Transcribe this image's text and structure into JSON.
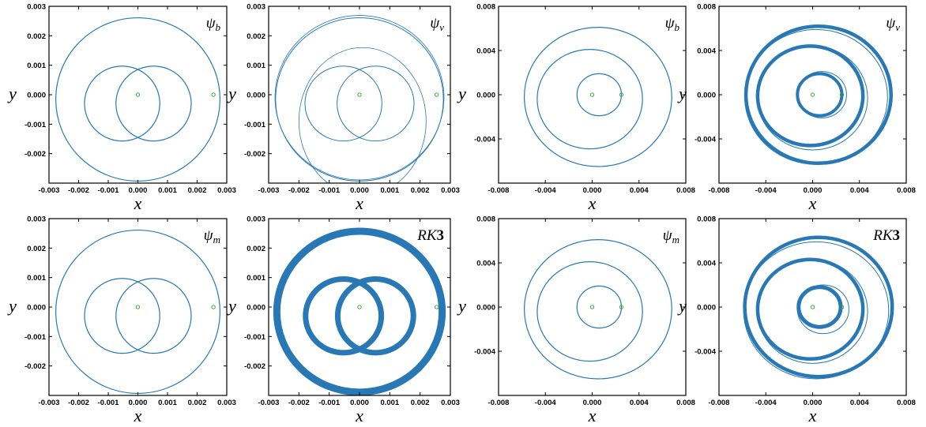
{
  "colors": {
    "trajectory": "#2878b5",
    "marker": "#2ca02c",
    "axes": "#000000"
  },
  "axis_labels": {
    "x": "x",
    "y": "y"
  },
  "chart_data": [
    {
      "type": "line",
      "panel_label": {
        "main": "ψ",
        "sub": "b"
      },
      "xlim": [
        -0.003,
        0.003
      ],
      "ylim": [
        -0.003,
        0.003
      ],
      "xticks": [
        "-0.003",
        "-0.002",
        "-0.001",
        "0.000",
        "0.001",
        "0.002",
        "0.003"
      ],
      "yticks": [
        "0.003",
        "0.002",
        "0.001",
        "0.000",
        "-0.001",
        "-0.002"
      ],
      "curves": [
        {
          "shape": "circle",
          "center": [
            0.0,
            -0.00016
          ],
          "radius": 0.00277,
          "width": 1.2
        },
        {
          "shape": "circle",
          "center": [
            -0.00053,
            -0.0003
          ],
          "radius": 0.00127,
          "width": 1.2
        },
        {
          "shape": "circle",
          "center": [
            0.00053,
            -0.0003
          ],
          "radius": 0.00127,
          "width": 1.2
        }
      ],
      "markers": [
        [
          0.0,
          0.0
        ],
        [
          0.00255,
          0.0
        ]
      ]
    },
    {
      "type": "line",
      "panel_label": {
        "main": "ψ",
        "sub": "v"
      },
      "xlim": [
        -0.003,
        0.003
      ],
      "ylim": [
        -0.003,
        0.003
      ],
      "xticks": [
        "-0.003",
        "-0.002",
        "-0.001",
        "0.000",
        "0.001",
        "0.002",
        "0.003"
      ],
      "yticks": [
        "0.003",
        "0.002",
        "0.001",
        "0.000",
        "-0.001",
        "-0.002"
      ],
      "curves": [
        {
          "shape": "circle",
          "center": [
            0.0,
            -0.00016
          ],
          "radius": 0.00277,
          "width": 1.0
        },
        {
          "shape": "circle",
          "center": [
            0.0,
            -0.0001
          ],
          "radius": 0.00279,
          "width": 0.8
        },
        {
          "shape": "circle",
          "center": [
            -0.00053,
            -0.0003
          ],
          "radius": 0.00127,
          "width": 1.0
        },
        {
          "shape": "circle",
          "center": [
            0.00053,
            -0.0003
          ],
          "radius": 0.00127,
          "width": 1.0
        },
        {
          "shape": "ellipse",
          "center": [
            0.0001,
            -0.0009
          ],
          "radius": [
            0.0021,
            0.0025
          ],
          "width": 0.8
        }
      ],
      "markers": [
        [
          0.0,
          0.0
        ],
        [
          0.00255,
          0.0
        ]
      ]
    },
    {
      "type": "line",
      "panel_label": {
        "main": "ψ",
        "sub": "b"
      },
      "xlim": [
        -0.008,
        0.008
      ],
      "ylim": [
        -0.008,
        0.008
      ],
      "xticks": [
        "-0.008",
        "-0.004",
        "0.000",
        "0.004",
        "0.008"
      ],
      "yticks": [
        "0.008",
        "0.004",
        "0.000",
        "-0.004"
      ],
      "curves": [
        {
          "shape": "circle",
          "center": [
            0.0005,
            -0.0002
          ],
          "radius": 0.0063,
          "width": 1.2
        },
        {
          "shape": "circle",
          "center": [
            -0.0002,
            -0.0004
          ],
          "radius": 0.0045,
          "width": 1.2
        },
        {
          "shape": "circle",
          "center": [
            0.0006,
            0.0
          ],
          "radius": 0.0019,
          "width": 1.2
        }
      ],
      "markers": [
        [
          0.0,
          0.0
        ],
        [
          0.0025,
          0.0
        ]
      ]
    },
    {
      "type": "line",
      "panel_label": {
        "main": "ψ",
        "sub": "v"
      },
      "xlim": [
        -0.008,
        0.008
      ],
      "ylim": [
        -0.008,
        0.008
      ],
      "xticks": [
        "-0.008",
        "-0.004",
        "0.000",
        "0.004",
        "0.008"
      ],
      "yticks": [
        "0.008",
        "0.004",
        "0.000",
        "-0.004"
      ],
      "curves": [
        {
          "shape": "circle",
          "center": [
            0.0005,
            0.0
          ],
          "radius": 0.0062,
          "width": 4.5
        },
        {
          "shape": "circle",
          "center": [
            0.0003,
            -0.0002
          ],
          "radius": 0.0061,
          "width": 1.0
        },
        {
          "shape": "circle",
          "center": [
            -0.0002,
            -0.0001
          ],
          "radius": 0.0045,
          "width": 4.5
        },
        {
          "shape": "circle",
          "center": [
            0.0,
            -0.0003
          ],
          "radius": 0.0047,
          "width": 1.0
        },
        {
          "shape": "circle",
          "center": [
            0.0006,
            0.0
          ],
          "radius": 0.0019,
          "width": 4.0
        },
        {
          "shape": "circle",
          "center": [
            0.0008,
            0.0
          ],
          "radius": 0.0021,
          "width": 1.0
        }
      ],
      "markers": [
        [
          0.0,
          0.0
        ],
        [
          0.0025,
          0.0
        ]
      ]
    },
    {
      "type": "line",
      "panel_label": {
        "main": "ψ",
        "sub": "m"
      },
      "xlim": [
        -0.003,
        0.003
      ],
      "ylim": [
        -0.003,
        0.003
      ],
      "xticks": [
        "-0.003",
        "-0.002",
        "-0.001",
        "0.000",
        "0.001",
        "0.002",
        "0.003"
      ],
      "yticks": [
        "0.003",
        "0.002",
        "0.001",
        "0.000",
        "-0.001",
        "-0.002"
      ],
      "curves": [
        {
          "shape": "circle",
          "center": [
            0.0,
            -0.00016
          ],
          "radius": 0.00277,
          "width": 1.2
        },
        {
          "shape": "circle",
          "center": [
            -0.00053,
            -0.0003
          ],
          "radius": 0.00127,
          "width": 1.2
        },
        {
          "shape": "circle",
          "center": [
            0.00053,
            -0.0003
          ],
          "radius": 0.00127,
          "width": 1.2
        }
      ],
      "markers": [
        [
          0.0,
          0.0
        ],
        [
          0.00255,
          0.0
        ]
      ]
    },
    {
      "type": "line",
      "panel_label": {
        "main": "RK",
        "bold": "3"
      },
      "xlim": [
        -0.003,
        0.003
      ],
      "ylim": [
        -0.003,
        0.003
      ],
      "xticks": [
        "-0.003",
        "-0.002",
        "-0.001",
        "0.000",
        "0.001",
        "0.002",
        "0.003"
      ],
      "yticks": [
        "0.003",
        "0.002",
        "0.001",
        "0.000",
        "-0.001",
        "-0.002"
      ],
      "curves": [
        {
          "shape": "circle",
          "center": [
            0.0,
            -0.00016
          ],
          "radius": 0.00273,
          "width": 9
        },
        {
          "shape": "circle",
          "center": [
            -0.00053,
            -0.0003
          ],
          "radius": 0.00125,
          "width": 7
        },
        {
          "shape": "circle",
          "center": [
            0.00053,
            -0.0003
          ],
          "radius": 0.00125,
          "width": 7
        }
      ],
      "markers": [
        [
          0.0,
          0.0
        ],
        [
          0.00255,
          0.0
        ]
      ]
    },
    {
      "type": "line",
      "panel_label": {
        "main": "ψ",
        "sub": "m"
      },
      "xlim": [
        -0.008,
        0.008
      ],
      "ylim": [
        -0.008,
        0.008
      ],
      "xticks": [
        "-0.008",
        "-0.004",
        "0.000",
        "0.004",
        "0.008"
      ],
      "yticks": [
        "0.008",
        "0.004",
        "0.000",
        "-0.004"
      ],
      "curves": [
        {
          "shape": "circle",
          "center": [
            0.0005,
            -0.0002
          ],
          "radius": 0.0063,
          "width": 1.2
        },
        {
          "shape": "circle",
          "center": [
            -0.0002,
            -0.0004
          ],
          "radius": 0.0045,
          "width": 1.2
        },
        {
          "shape": "circle",
          "center": [
            0.0006,
            0.0
          ],
          "radius": 0.0019,
          "width": 1.2
        }
      ],
      "markers": [
        [
          0.0,
          0.0
        ],
        [
          0.0025,
          0.0
        ]
      ]
    },
    {
      "type": "line",
      "panel_label": {
        "main": "RK",
        "bold": "3"
      },
      "xlim": [
        -0.008,
        0.008
      ],
      "ylim": [
        -0.008,
        0.008
      ],
      "xticks": [
        "-0.008",
        "-0.004",
        "0.000",
        "0.004",
        "0.008"
      ],
      "yticks": [
        "0.008",
        "0.004",
        "0.000",
        "-0.004"
      ],
      "curves": [
        {
          "shape": "circle",
          "center": [
            0.0005,
            0.0
          ],
          "radius": 0.0063,
          "width": 4.5
        },
        {
          "shape": "circle",
          "center": [
            0.0003,
            -0.0003
          ],
          "radius": 0.0062,
          "width": 1.0
        },
        {
          "shape": "circle",
          "center": [
            -0.0002,
            -0.0002
          ],
          "radius": 0.0045,
          "width": 4.5
        },
        {
          "shape": "circle",
          "center": [
            0.0,
            -0.0004
          ],
          "radius": 0.0047,
          "width": 1.0
        },
        {
          "shape": "circle",
          "center": [
            0.0006,
            0.0
          ],
          "radius": 0.0018,
          "width": 5.0
        },
        {
          "shape": "circle",
          "center": [
            0.0009,
            -0.0002
          ],
          "radius": 0.0022,
          "width": 1.0
        }
      ],
      "markers": [
        [
          0.0,
          0.0
        ],
        [
          0.0025,
          0.0
        ]
      ]
    }
  ]
}
